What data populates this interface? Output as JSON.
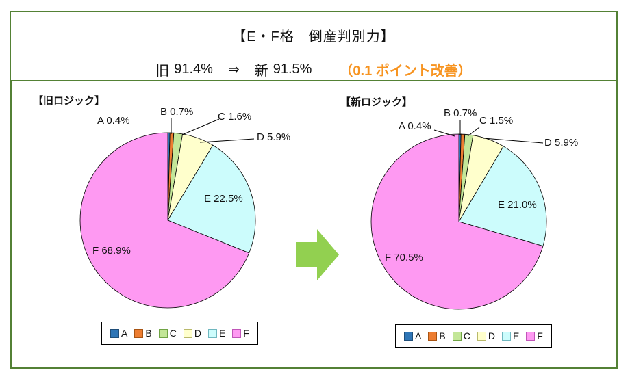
{
  "header": {
    "title": "【E・F格　倒産判別力】",
    "comparison": {
      "old_label": "旧",
      "old_value": "91.4%",
      "arrow": "⇒",
      "new_label": "新",
      "new_value": "91.5%",
      "improvement": "（0.1 ポイント改善）",
      "improvement_color": "#F79421"
    }
  },
  "colors": {
    "frame_green": "#538135",
    "arrow_green": "#92D050"
  },
  "palette": {
    "A": {
      "fill": "#2E75B6",
      "edge": "#1F4E79"
    },
    "B": {
      "fill": "#ED7D31",
      "edge": "#A85413"
    },
    "C": {
      "fill": "#C3E698",
      "edge": "#70A445"
    },
    "D": {
      "fill": "#FFFFCC",
      "edge": "#B9B96B"
    },
    "E": {
      "fill": "#CCFCFC",
      "edge": "#6FB7BF"
    },
    "F": {
      "fill": "#FE99F2",
      "edge": "#C055B8"
    }
  },
  "chart_data": [
    {
      "type": "pie",
      "title": "【旧ロジック】",
      "categories": [
        "A",
        "B",
        "C",
        "D",
        "E",
        "F"
      ],
      "values": [
        0.4,
        0.7,
        1.6,
        5.9,
        22.5,
        68.9
      ],
      "labels": [
        "A 0.4%",
        "B 0.7%",
        "C 1.6%",
        "D 5.9%",
        "E 22.5%",
        "F 68.9%"
      ],
      "start_angle_deg": 0,
      "direction": "clockwise",
      "legend_position": "bottom"
    },
    {
      "type": "pie",
      "title": "【新ロジック】",
      "categories": [
        "A",
        "B",
        "C",
        "D",
        "E",
        "F"
      ],
      "values": [
        0.4,
        0.7,
        1.5,
        5.9,
        21.0,
        70.5
      ],
      "labels": [
        "A 0.4%",
        "B 0.7%",
        "C 1.5%",
        "D 5.9%",
        "E 21.0%",
        "F 70.5%"
      ],
      "start_angle_deg": 0,
      "direction": "clockwise",
      "legend_position": "bottom"
    }
  ]
}
